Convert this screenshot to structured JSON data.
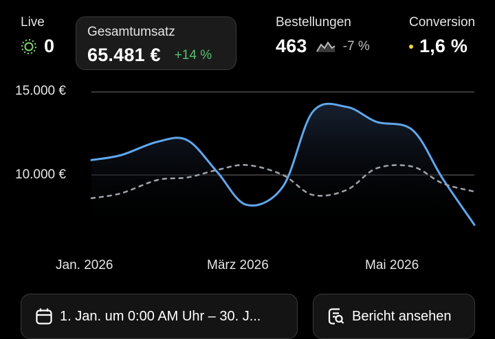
{
  "metrics": {
    "live": {
      "label": "Live",
      "value": "0",
      "icon": "live-pulse-icon"
    },
    "total_sales": {
      "label": "Gesamtumsatz",
      "value": "65.481 €",
      "delta": "+14 %",
      "delta_color": "#55c06f"
    },
    "orders": {
      "label": "Bestellungen",
      "value": "463",
      "delta": "-7 %",
      "icon": "sparkline-icon"
    },
    "conversion": {
      "label": "Conversion",
      "value": "1,6 %",
      "dot_color": "#f5d742"
    }
  },
  "chart_data": {
    "type": "line",
    "y_ticks": [
      "15.000 €",
      "10.000 €"
    ],
    "ylim": [
      0,
      15000
    ],
    "x_ticks": [
      "Jan. 2026",
      "März 2026",
      "Mai 2026"
    ],
    "x": [
      "2026-01-01",
      "2026-01-15",
      "2026-02-01",
      "2026-02-15",
      "2026-03-01",
      "2026-03-15",
      "2026-04-01",
      "2026-04-15",
      "2026-05-01",
      "2026-05-15",
      "2026-06-01",
      "2026-06-15",
      "2026-06-30"
    ],
    "series": [
      {
        "values": [
          10900,
          11200,
          12000,
          12100,
          10200,
          8200,
          9300,
          13800,
          14100,
          13200,
          12700,
          9800,
          7000
        ],
        "color": "#5fa8ee",
        "style": "solid",
        "fill": true
      },
      {
        "values": [
          8600,
          8900,
          9700,
          9850,
          10300,
          10600,
          10000,
          8800,
          9100,
          10400,
          10500,
          9500,
          9000
        ],
        "color": "#9aa0a6",
        "style": "dashed"
      }
    ],
    "grid": true
  },
  "footer": {
    "date_range": "1. Jan. um 0:00 AM Uhr – 30. J...",
    "report_button": "Bericht ansehen"
  }
}
